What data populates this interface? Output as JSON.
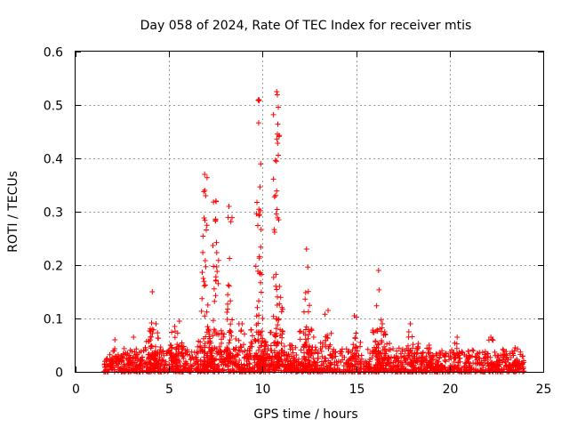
{
  "chart_data": {
    "type": "scatter",
    "title": "Day 058 of 2024, Rate Of TEC Index for receiver mtis",
    "xlabel": "GPS time / hours",
    "ylabel": "ROTI / TECUs",
    "xlim": [
      0,
      25
    ],
    "ylim": [
      0,
      0.6
    ],
    "xticks": [
      0,
      5,
      10,
      15,
      20,
      25
    ],
    "xtick_labels": [
      "0",
      "5",
      "10",
      "15",
      "20",
      "25"
    ],
    "yticks": [
      0,
      0.1,
      0.2,
      0.3,
      0.4,
      0.5,
      0.6
    ],
    "ytick_labels": [
      "0",
      "0.1",
      "0.2",
      "0.3",
      "0.4",
      "0.5",
      "0.6"
    ],
    "grid": true,
    "marker": "plus",
    "series_color": "#ff0000",
    "x_data_range": [
      1.5,
      24.0
    ],
    "baseline_roti_range": [
      0.0,
      0.05
    ],
    "peaks": [
      {
        "x": 2.1,
        "y": 0.06
      },
      {
        "x": 3.1,
        "y": 0.065
      },
      {
        "x": 4.1,
        "y": 0.15
      },
      {
        "x": 4.3,
        "y": 0.09
      },
      {
        "x": 5.3,
        "y": 0.085
      },
      {
        "x": 5.55,
        "y": 0.095
      },
      {
        "x": 6.9,
        "y": 0.37
      },
      {
        "x": 7.1,
        "y": 0.08
      },
      {
        "x": 7.5,
        "y": 0.32
      },
      {
        "x": 8.2,
        "y": 0.31
      },
      {
        "x": 8.9,
        "y": 0.09
      },
      {
        "x": 9.8,
        "y": 0.51
      },
      {
        "x": 10.0,
        "y": 0.1
      },
      {
        "x": 10.75,
        "y": 0.525
      },
      {
        "x": 10.9,
        "y": 0.16
      },
      {
        "x": 11.5,
        "y": 0.05
      },
      {
        "x": 12.35,
        "y": 0.23
      },
      {
        "x": 12.6,
        "y": 0.08
      },
      {
        "x": 13.5,
        "y": 0.115
      },
      {
        "x": 14.9,
        "y": 0.105
      },
      {
        "x": 16.2,
        "y": 0.19
      },
      {
        "x": 16.4,
        "y": 0.09
      },
      {
        "x": 17.9,
        "y": 0.09
      },
      {
        "x": 18.9,
        "y": 0.05
      },
      {
        "x": 20.4,
        "y": 0.065
      },
      {
        "x": 22.2,
        "y": 0.065
      },
      {
        "x": 23.5,
        "y": 0.045
      }
    ]
  }
}
